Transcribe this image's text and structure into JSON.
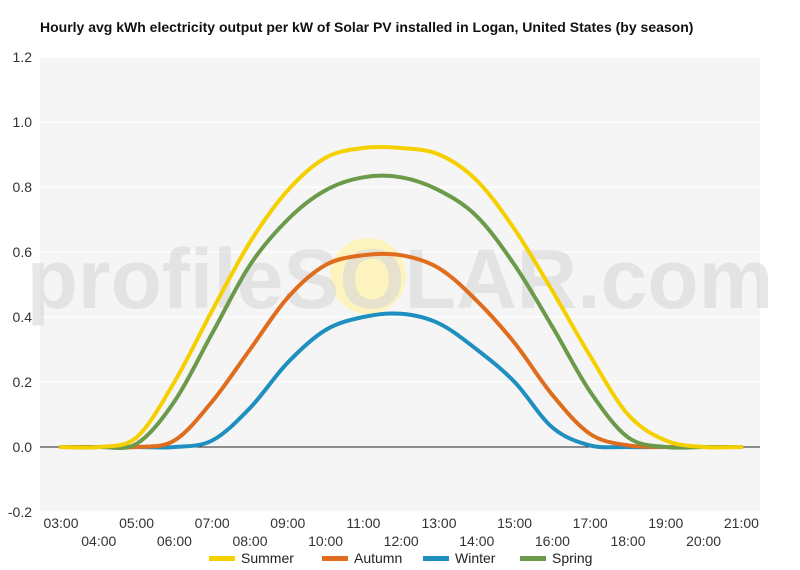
{
  "chart_data": {
    "type": "line",
    "title": "Hourly avg kWh electricity output per kW of Solar PV installed in Logan, United States (by season)",
    "xlabel": "",
    "ylabel": "",
    "x": [
      "03:00",
      "04:00",
      "05:00",
      "06:00",
      "07:00",
      "08:00",
      "09:00",
      "10:00",
      "11:00",
      "12:00",
      "13:00",
      "14:00",
      "15:00",
      "16:00",
      "17:00",
      "18:00",
      "19:00",
      "20:00",
      "21:00"
    ],
    "ylim": [
      -0.2,
      1.2
    ],
    "yticks": [
      1.2,
      1.0,
      0.8,
      0.6,
      0.4,
      0.2,
      0.0,
      -0.2
    ],
    "grid": true,
    "legend_position": "bottom",
    "series": [
      {
        "name": "Summer",
        "color": "#f5d000",
        "values": [
          0,
          0,
          0.03,
          0.2,
          0.42,
          0.63,
          0.79,
          0.89,
          0.92,
          0.92,
          0.9,
          0.82,
          0.67,
          0.48,
          0.28,
          0.1,
          0.02,
          0,
          0
        ]
      },
      {
        "name": "Autumn",
        "color": "#e06c1e",
        "values": [
          0,
          0,
          0,
          0.02,
          0.14,
          0.3,
          0.46,
          0.56,
          0.59,
          0.59,
          0.55,
          0.45,
          0.32,
          0.16,
          0.04,
          0.005,
          0,
          0,
          0
        ]
      },
      {
        "name": "Winter",
        "color": "#1e8fbf",
        "values": [
          0,
          0,
          0,
          0,
          0.02,
          0.12,
          0.26,
          0.36,
          0.4,
          0.41,
          0.38,
          0.3,
          0.2,
          0.06,
          0.005,
          0,
          0,
          0,
          0
        ]
      },
      {
        "name": "Spring",
        "color": "#6b9a4b",
        "values": [
          0,
          0,
          0.01,
          0.14,
          0.35,
          0.56,
          0.7,
          0.79,
          0.83,
          0.83,
          0.79,
          0.71,
          0.56,
          0.37,
          0.17,
          0.03,
          0,
          0,
          0
        ]
      }
    ],
    "watermark": "profileSOLAR.com"
  }
}
